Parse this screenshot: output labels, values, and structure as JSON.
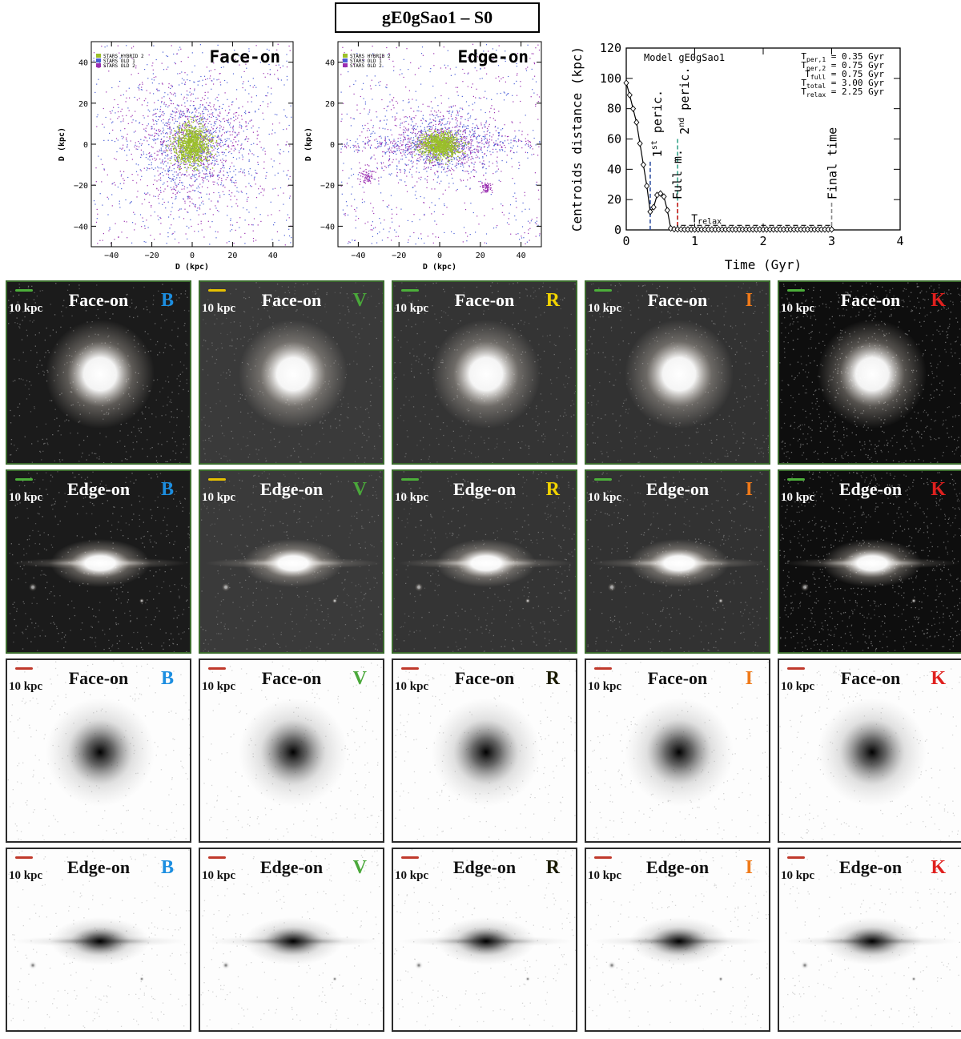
{
  "figure_title": "gE0gSao1 – S0",
  "scatter_panels": [
    {
      "view_label": "Face-on",
      "x_label": "D (kpc)",
      "y_label": "D (kpc)",
      "x_ticks": [
        "−40",
        "−20",
        "0",
        "20",
        "40"
      ],
      "y_ticks": [
        "40",
        "20",
        "0",
        "−20",
        "−40"
      ],
      "legend": [
        {
          "label": "STARS HYBRID 2",
          "color": "#9bbf2a"
        },
        {
          "label": "STARS OLD 1",
          "color": "#4a5ed6"
        },
        {
          "label": "STARS OLD 2",
          "color": "#9a2fb0"
        }
      ]
    },
    {
      "view_label": "Edge-on",
      "x_label": "D (kpc)",
      "y_label": "D (kpc)",
      "x_ticks": [
        "−40",
        "−20",
        "0",
        "20",
        "40"
      ],
      "y_ticks": [
        "40",
        "20",
        "0",
        "−20",
        "−40"
      ],
      "legend": [
        {
          "label": "STARS HYBRID 2",
          "color": "#9bbf2a"
        },
        {
          "label": "STARS OLD 1",
          "color": "#4a5ed6"
        },
        {
          "label": "STARS OLD 2",
          "color": "#9a2fb0"
        }
      ]
    }
  ],
  "chart_data": {
    "type": "line",
    "model_label": "Model gE0gSao1",
    "xlabel": "Time (Gyr)",
    "ylabel": "Centroids distance (kpc)",
    "xlim": [
      0,
      4
    ],
    "ylim": [
      0,
      120
    ],
    "x_ticks": [
      "0",
      "1",
      "2",
      "3",
      "4"
    ],
    "y_ticks": [
      "0",
      "20",
      "40",
      "60",
      "80",
      "100",
      "120"
    ],
    "x": [
      0.0,
      0.05,
      0.1,
      0.15,
      0.2,
      0.25,
      0.3,
      0.35,
      0.4,
      0.45,
      0.5,
      0.55,
      0.6,
      0.65,
      0.7,
      0.75,
      0.8,
      0.85,
      0.9,
      0.95,
      1.0,
      1.05,
      1.1,
      1.15,
      1.2,
      1.25,
      1.3,
      1.35,
      1.4,
      1.45,
      1.5,
      1.55,
      1.6,
      1.65,
      1.7,
      1.75,
      1.8,
      1.85,
      1.9,
      1.95,
      2.0,
      2.05,
      2.1,
      2.15,
      2.2,
      2.25,
      2.3,
      2.35,
      2.4,
      2.45,
      2.5,
      2.55,
      2.6,
      2.65,
      2.7,
      2.75,
      2.8,
      2.85,
      2.9,
      2.95,
      3.0
    ],
    "y": [
      97,
      89,
      80,
      71,
      57,
      43,
      29,
      12,
      15,
      23,
      24,
      22,
      13,
      1,
      0.5,
      0.4,
      0.4,
      0.3,
      0.3,
      0.3,
      0.3,
      0.3,
      0.3,
      0.3,
      0.3,
      0.3,
      0.3,
      0.3,
      0.3,
      0.3,
      0.3,
      0.3,
      0.3,
      0.3,
      0.3,
      0.3,
      0.3,
      0.3,
      0.3,
      0.3,
      0.3,
      0.3,
      0.3,
      0.3,
      0.3,
      0.3,
      0.3,
      0.3,
      0.3,
      0.3,
      0.3,
      0.3,
      0.3,
      0.3,
      0.3,
      0.3,
      0.3,
      0.3,
      0.3,
      0.3,
      0.3
    ],
    "events": [
      {
        "time": 0.35,
        "label_main": "1",
        "label_sup": "st",
        "label_rest": " peric.",
        "color": "#2f4fa0"
      },
      {
        "time": 0.75,
        "label_main": "2",
        "label_sup": "nd",
        "label_rest": " peric.",
        "color": "#37a58c"
      },
      {
        "time": 0.75,
        "label_main": "Full m.",
        "label_sup": "",
        "label_rest": "",
        "color": "#d62020"
      },
      {
        "time": 3.0,
        "label_main": "Final time",
        "label_sup": "",
        "label_rest": "",
        "color": "#888888"
      }
    ],
    "relax_label": {
      "main": "T",
      "sub": "relax"
    },
    "relax_range": [
      0.75,
      3.0
    ],
    "relax_level": 3,
    "timescales": [
      {
        "symbol": "T",
        "sub": "per,1",
        "value": "= 0.35 Gyr"
      },
      {
        "symbol": "T",
        "sub": "per,2",
        "value": "= 0.75 Gyr"
      },
      {
        "symbol": "T",
        "sub": "full",
        "value": "= 0.75 Gyr"
      },
      {
        "symbol": "T",
        "sub": "total",
        "value": "= 3.00 Gyr"
      },
      {
        "symbol": "T",
        "sub": "relax",
        "value": "= 2.25 Gyr"
      }
    ]
  },
  "image_grid": {
    "scale_label": "10 kpc",
    "bands": [
      {
        "name": "B",
        "color": "#1c8ee0"
      },
      {
        "name": "V",
        "color": "#4aa83a"
      },
      {
        "name": "R",
        "color": "#f2d400"
      },
      {
        "name": "I",
        "color": "#ef7a1a"
      },
      {
        "name": "K",
        "color": "#e0201e"
      }
    ],
    "rows": [
      {
        "view": "Face-on",
        "style": "dark"
      },
      {
        "view": "Edge-on",
        "style": "dark"
      },
      {
        "view": "Face-on",
        "style": "light"
      },
      {
        "view": "Edge-on",
        "style": "light"
      }
    ],
    "light_R_color": "#1a1a00"
  }
}
